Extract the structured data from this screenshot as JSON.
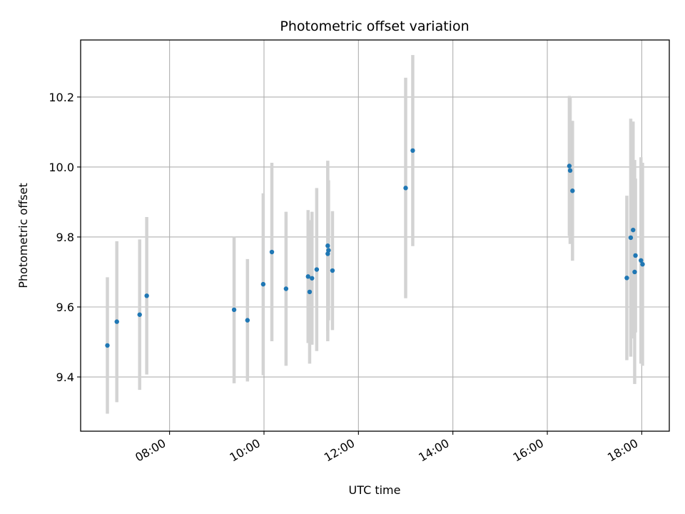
{
  "chart_data": {
    "type": "scatter",
    "title": "Photometric offset variation",
    "xlabel": "UTC time",
    "ylabel": "Photometric offset",
    "x_ticks": [
      "08:00",
      "10:00",
      "12:00",
      "14:00",
      "16:00",
      "18:00"
    ],
    "y_ticks": [
      "9.4",
      "9.6",
      "9.8",
      "10.0",
      "10.2"
    ],
    "xlim": [
      "06:07",
      "18:35"
    ],
    "ylim": [
      9.245,
      10.363
    ],
    "grid": true,
    "colors": {
      "point": "#1f77b4",
      "errorbar": "#d3d3d3",
      "grid": "#b0b0b0"
    },
    "points": [
      {
        "time": "06:41",
        "y": 9.49,
        "err": 0.195
      },
      {
        "time": "06:53",
        "y": 9.558,
        "err": 0.23
      },
      {
        "time": "07:22",
        "y": 9.578,
        "err": 0.215
      },
      {
        "time": "07:31",
        "y": 9.632,
        "err": 0.225
      },
      {
        "time": "09:22",
        "y": 9.592,
        "err": 0.21
      },
      {
        "time": "09:39",
        "y": 9.562,
        "err": 0.175
      },
      {
        "time": "09:59",
        "y": 9.665,
        "err": 0.26
      },
      {
        "time": "10:10",
        "y": 9.757,
        "err": 0.255
      },
      {
        "time": "10:28",
        "y": 9.652,
        "err": 0.22
      },
      {
        "time": "10:56",
        "y": 9.687,
        "err": 0.19
      },
      {
        "time": "10:58",
        "y": 9.643,
        "err": 0.205
      },
      {
        "time": "11:01",
        "y": 9.682,
        "err": 0.19
      },
      {
        "time": "11:07",
        "y": 9.707,
        "err": 0.233
      },
      {
        "time": "11:21",
        "y": 9.775,
        "err": 0.243
      },
      {
        "time": "11:21",
        "y": 9.752,
        "err": 0.25
      },
      {
        "time": "11:22",
        "y": 9.762,
        "err": 0.2
      },
      {
        "time": "11:27",
        "y": 9.704,
        "err": 0.17
      },
      {
        "time": "13:00",
        "y": 9.94,
        "err": 0.315
      },
      {
        "time": "13:09",
        "y": 10.047,
        "err": 0.273
      },
      {
        "time": "16:28",
        "y": 10.003,
        "err": 0.2
      },
      {
        "time": "16:29",
        "y": 9.99,
        "err": 0.21
      },
      {
        "time": "16:32",
        "y": 9.932,
        "err": 0.2
      },
      {
        "time": "17:41",
        "y": 9.683,
        "err": 0.235
      },
      {
        "time": "17:46",
        "y": 9.798,
        "err": 0.34
      },
      {
        "time": "17:49",
        "y": 9.82,
        "err": 0.31
      },
      {
        "time": "17:51",
        "y": 9.7,
        "err": 0.32
      },
      {
        "time": "17:52",
        "y": 9.747,
        "err": 0.22
      },
      {
        "time": "17:59",
        "y": 9.733,
        "err": 0.295
      },
      {
        "time": "18:01",
        "y": 9.722,
        "err": 0.29
      }
    ]
  }
}
